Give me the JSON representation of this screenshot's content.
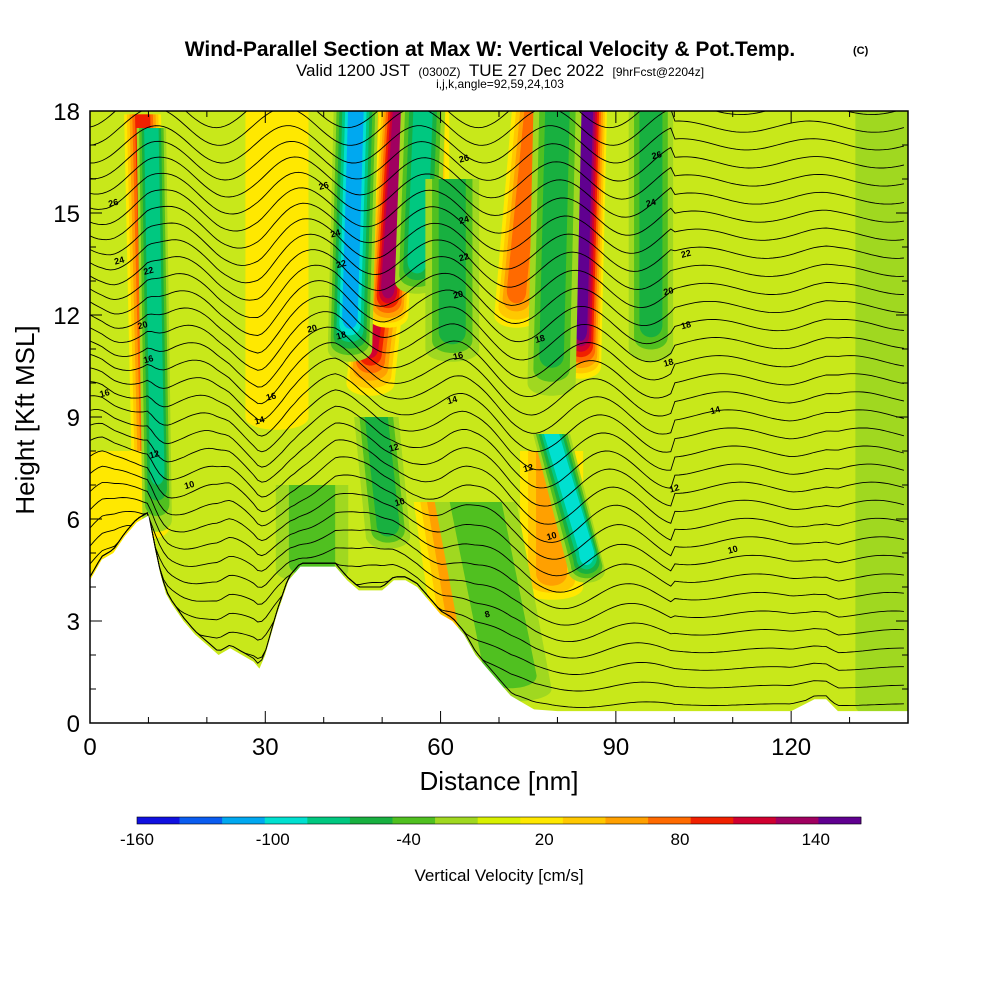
{
  "chart_data": {
    "type": "heatmap",
    "title": "Wind-Parallel Section at Max W: Vertical Velocity & Pot.Temp.",
    "title_mark": "(C)",
    "subtitle_parts": [
      "Valid 1200 JST",
      "(0300Z)",
      "TUE 27 Dec 2022",
      "[9hrFcst@2204z]"
    ],
    "subtitle2": "i,j,k,angle=92,59,24,103",
    "xlabel": "Distance [nm]",
    "ylabel": "Height [Kft MSL]",
    "xlim": [
      0,
      140
    ],
    "ylim": [
      0,
      18
    ],
    "x_ticks": [
      0,
      30,
      60,
      90,
      120
    ],
    "y_ticks": [
      0,
      3,
      6,
      9,
      12,
      15,
      18
    ],
    "colorbar": {
      "label": "Vertical Velocity [cm/s]",
      "tick_labels": [
        "-160",
        "-100",
        "-40",
        "20",
        "80",
        "140"
      ],
      "tick_values": [
        -160,
        -100,
        -40,
        20,
        80,
        140
      ],
      "levels": [
        -160,
        -140,
        -120,
        -100,
        -80,
        -60,
        -40,
        -20,
        0,
        20,
        40,
        60,
        80,
        100,
        120,
        140,
        160
      ],
      "colors": [
        "#1010e0",
        "#0a5cf0",
        "#00a8f0",
        "#00e0d0",
        "#00c880",
        "#18b040",
        "#50c020",
        "#a0d820",
        "#d8f000",
        "#ffe800",
        "#ffc800",
        "#ffa000",
        "#ff6a00",
        "#f02000",
        "#d00030",
        "#a00060",
        "#600090"
      ]
    },
    "updraft_bands": [
      {
        "x": 10.5,
        "w": 1.6,
        "z_bottom": 5.8,
        "z_top": 17.9,
        "tilt": -1.5,
        "value": 110
      },
      {
        "x": 48,
        "w": 2.2,
        "z_bottom": 10.0,
        "z_top": 18.0,
        "tilt": 5,
        "value": 130
      },
      {
        "x": 51,
        "w": 1.8,
        "z_bottom": 12.0,
        "z_top": 18.0,
        "tilt": 2,
        "value": 150
      },
      {
        "x": 73,
        "w": 2.0,
        "z_bottom": 12.0,
        "z_top": 18.0,
        "tilt": 3,
        "value": 90
      },
      {
        "x": 84,
        "w": 1.8,
        "z_bottom": 10.5,
        "z_top": 18.0,
        "tilt": 1,
        "value": 160
      },
      {
        "x": 63,
        "w": 2.5,
        "z_bottom": 3.0,
        "z_top": 6.5,
        "tilt": -3,
        "value": 70
      },
      {
        "x": 79,
        "w": 3.0,
        "z_bottom": 4.0,
        "z_top": 8.0,
        "tilt": 0,
        "value": 70
      },
      {
        "x": 58,
        "w": 1.8,
        "z_bottom": 14.0,
        "z_top": 18.0,
        "tilt": 0,
        "value": 60
      },
      {
        "x": 32,
        "w": 3.0,
        "z_bottom": 9.0,
        "z_top": 18.0,
        "tilt": 0,
        "value": 30
      },
      {
        "x": 4,
        "w": 4.0,
        "z_bottom": 4.0,
        "z_top": 8.0,
        "tilt": 0,
        "value": 30
      }
    ],
    "downdraft_bands": [
      {
        "x": 11.5,
        "w": 1.2,
        "z_bottom": 6.0,
        "z_top": 17.5,
        "tilt": -1,
        "value": -90
      },
      {
        "x": 44.5,
        "w": 2.0,
        "z_bottom": 11.0,
        "z_top": 18.0,
        "tilt": 1,
        "value": -130
      },
      {
        "x": 56,
        "w": 2.0,
        "z_bottom": 13.0,
        "z_top": 18.0,
        "tilt": 1,
        "value": -80
      },
      {
        "x": 62,
        "w": 2.5,
        "z_bottom": 11.0,
        "z_top": 16.0,
        "tilt": 0,
        "value": -60
      },
      {
        "x": 79,
        "w": 2.2,
        "z_bottom": 10.0,
        "z_top": 18.0,
        "tilt": 1,
        "value": -60
      },
      {
        "x": 85,
        "w": 1.6,
        "z_bottom": 4.5,
        "z_top": 8.5,
        "tilt": -6,
        "value": -110
      },
      {
        "x": 96,
        "w": 2.0,
        "z_bottom": 11.0,
        "z_top": 18.0,
        "tilt": 0,
        "value": -60
      },
      {
        "x": 72,
        "w": 4.0,
        "z_bottom": 1.0,
        "z_top": 6.5,
        "tilt": -6,
        "value": -50
      },
      {
        "x": 51,
        "w": 2.0,
        "z_bottom": 5.5,
        "z_top": 9.0,
        "tilt": -2,
        "value": -60
      },
      {
        "x": 38,
        "w": 3.5,
        "z_bottom": 4.5,
        "z_top": 7.0,
        "tilt": 0,
        "value": -40
      },
      {
        "x": 138,
        "w": 4.0,
        "z_bottom": 0.5,
        "z_top": 18.0,
        "tilt": 0,
        "value": -15
      }
    ],
    "terrain": {
      "x": [
        0,
        2,
        4,
        6,
        8,
        10,
        11,
        12,
        13,
        14,
        16,
        18,
        20,
        22,
        24,
        26,
        28,
        29,
        30,
        32,
        34,
        36,
        38,
        40,
        42,
        44,
        46,
        48,
        50,
        52,
        54,
        56,
        58,
        60,
        62,
        64,
        66,
        68,
        70,
        72,
        74,
        76,
        80,
        90,
        100,
        110,
        120,
        124,
        126,
        128,
        130,
        140
      ],
      "z": [
        4.2,
        4.8,
        5.0,
        5.5,
        5.9,
        6.1,
        5.2,
        4.4,
        3.8,
        3.5,
        3.0,
        2.6,
        2.3,
        2.0,
        2.2,
        2.0,
        1.8,
        1.6,
        2.0,
        3.2,
        4.2,
        4.6,
        4.6,
        4.6,
        4.6,
        4.2,
        3.9,
        3.9,
        3.9,
        4.2,
        4.2,
        4.0,
        3.6,
        3.2,
        3.0,
        2.6,
        2.0,
        1.6,
        1.2,
        0.8,
        0.6,
        0.4,
        0.35,
        0.35,
        0.35,
        0.35,
        0.35,
        0.7,
        0.7,
        0.35,
        0.35,
        0.35
      ]
    },
    "theta_contours": {
      "levels": [
        8,
        10,
        12,
        14,
        16,
        18,
        20,
        22,
        24,
        26
      ],
      "labels": [
        {
          "text": "8",
          "x": 68,
          "z": 3.2
        },
        {
          "text": "10",
          "x": 17,
          "z": 7.0
        },
        {
          "text": "10",
          "x": 53,
          "z": 6.5
        },
        {
          "text": "10",
          "x": 79,
          "z": 5.5
        },
        {
          "text": "10",
          "x": 110,
          "z": 5.1
        },
        {
          "text": "12",
          "x": 11,
          "z": 7.9
        },
        {
          "text": "12",
          "x": 52,
          "z": 8.1
        },
        {
          "text": "12",
          "x": 75,
          "z": 7.5
        },
        {
          "text": "12",
          "x": 100,
          "z": 6.9
        },
        {
          "text": "14",
          "x": 29,
          "z": 8.9
        },
        {
          "text": "14",
          "x": 62,
          "z": 9.5
        },
        {
          "text": "14",
          "x": 107,
          "z": 9.2
        },
        {
          "text": "16",
          "x": 2.5,
          "z": 9.7
        },
        {
          "text": "16",
          "x": 31,
          "z": 9.6
        },
        {
          "text": "16",
          "x": 63,
          "z": 10.8
        },
        {
          "text": "16",
          "x": 10,
          "z": 10.7
        },
        {
          "text": "18",
          "x": 43,
          "z": 11.4
        },
        {
          "text": "18",
          "x": 77,
          "z": 11.3
        },
        {
          "text": "18",
          "x": 99,
          "z": 10.6
        },
        {
          "text": "18",
          "x": 102,
          "z": 11.7
        },
        {
          "text": "20",
          "x": 9,
          "z": 11.7
        },
        {
          "text": "20",
          "x": 38,
          "z": 11.6
        },
        {
          "text": "20",
          "x": 63,
          "z": 12.6
        },
        {
          "text": "20",
          "x": 99,
          "z": 12.7
        },
        {
          "text": "22",
          "x": 10,
          "z": 13.3
        },
        {
          "text": "22",
          "x": 43,
          "z": 13.5
        },
        {
          "text": "22",
          "x": 64,
          "z": 13.7
        },
        {
          "text": "22",
          "x": 102,
          "z": 13.8
        },
        {
          "text": "24",
          "x": 5,
          "z": 13.6
        },
        {
          "text": "24",
          "x": 42,
          "z": 14.4
        },
        {
          "text": "24",
          "x": 64,
          "z": 14.8
        },
        {
          "text": "24",
          "x": 96,
          "z": 15.3
        },
        {
          "text": "26",
          "x": 4,
          "z": 15.3
        },
        {
          "text": "26",
          "x": 40,
          "z": 15.8
        },
        {
          "text": "26",
          "x": 64,
          "z": 16.6
        },
        {
          "text": "26",
          "x": 97,
          "z": 16.7
        }
      ]
    },
    "grid": false,
    "legend": "none"
  }
}
